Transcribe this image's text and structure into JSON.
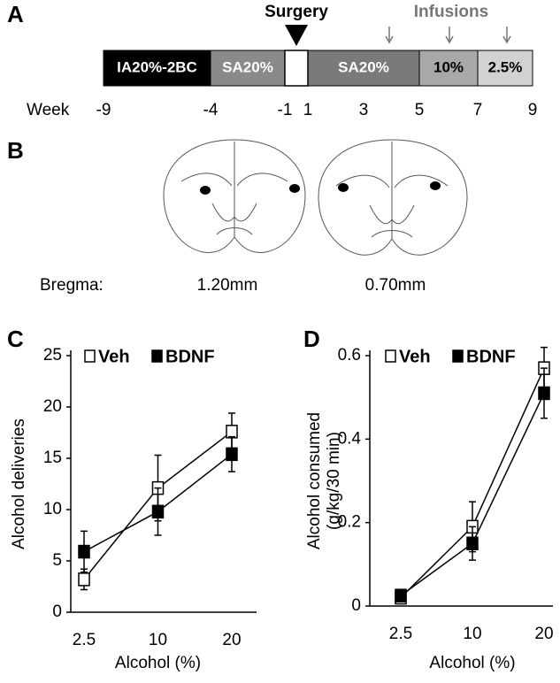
{
  "panel_a": {
    "label": "A",
    "surgery": "Surgery",
    "infusions": "Infusions",
    "week_label": "Week",
    "segments": [
      {
        "label": "IA20%-2BC",
        "color": "#000000"
      },
      {
        "label": "SA20%",
        "color": "#8a8a8a"
      },
      {
        "label": "SA20%",
        "color": "#7a7a7a"
      },
      {
        "label": "10%",
        "color": "#a8a8a8"
      },
      {
        "label": "2.5%",
        "color": "#d2d2d2"
      }
    ],
    "weeks": [
      "-9",
      "-4",
      "-1",
      "1",
      "3",
      "5",
      "7",
      "9"
    ]
  },
  "panel_b": {
    "label": "B",
    "bregma": "Bregma:",
    "sections": [
      "1.20mm",
      "0.70mm"
    ]
  },
  "chart_data": [
    {
      "type": "line",
      "panel": "C",
      "ylabel": "Alcohol deliveries",
      "xlabel": "Alcohol (%)",
      "categories": [
        "2.5",
        "10",
        "20"
      ],
      "ylim": [
        0,
        25
      ],
      "yticks": [
        0,
        5,
        10,
        15,
        20,
        25
      ],
      "series": [
        {
          "name": "Veh",
          "color": "#ffffff",
          "values": [
            3.2,
            12.1,
            17.6
          ],
          "errors": [
            1.0,
            3.2,
            1.8
          ]
        },
        {
          "name": "BDNF",
          "color": "#000000",
          "values": [
            5.9,
            9.8,
            15.4
          ],
          "errors": [
            2.0,
            2.3,
            1.7
          ]
        }
      ]
    },
    {
      "type": "line",
      "panel": "D",
      "ylabel": [
        "Alcohol consumed",
        "(g/kg/30 min)"
      ],
      "xlabel": "Alcohol (%)",
      "categories": [
        "2.5",
        "10",
        "20"
      ],
      "ylim": [
        0,
        0.6
      ],
      "yticks": [
        0,
        0.2,
        0.4,
        0.6
      ],
      "series": [
        {
          "name": "Veh",
          "color": "#ffffff",
          "values": [
            0.02,
            0.19,
            0.57
          ],
          "errors": [
            0.01,
            0.06,
            0.05
          ]
        },
        {
          "name": "BDNF",
          "color": "#000000",
          "values": [
            0.025,
            0.15,
            0.51
          ],
          "errors": [
            0.01,
            0.04,
            0.06
          ]
        }
      ]
    }
  ]
}
